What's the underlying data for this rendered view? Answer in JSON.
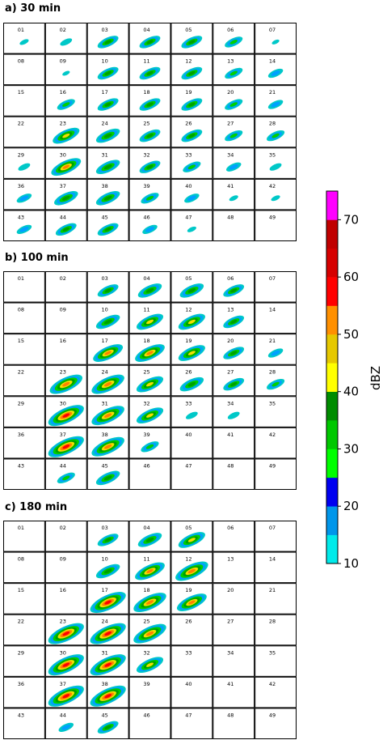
{
  "panels": [
    {
      "title": "a) 30 min",
      "cells": [
        "01",
        "02",
        "03",
        "04",
        "05",
        "06",
        "07",
        "08",
        "09",
        "10",
        "11",
        "12",
        "13",
        "14",
        "15",
        "16",
        "17",
        "18",
        "19",
        "20",
        "21",
        "22",
        "23",
        "24",
        "25",
        "26",
        "27",
        "28",
        "29",
        "30",
        "31",
        "32",
        "33",
        "34",
        "35",
        "36",
        "37",
        "38",
        "39",
        "40",
        "41",
        "42",
        "43",
        "44",
        "45",
        "46",
        "47",
        "48",
        "49"
      ],
      "storm_intensity": [
        0.1,
        0.2,
        0.5,
        0.5,
        0.5,
        0.4,
        0.05,
        0,
        0.05,
        0.5,
        0.5,
        0.5,
        0.4,
        0.3,
        0,
        0.4,
        0.5,
        0.5,
        0.5,
        0.4,
        0.3,
        0,
        0.7,
        0.6,
        0.5,
        0.5,
        0.4,
        0.4,
        0.2,
        0.8,
        0.6,
        0.5,
        0.4,
        0.3,
        0.2,
        0.3,
        0.6,
        0.6,
        0.4,
        0.3,
        0.1,
        0.1,
        0.3,
        0.5,
        0.5,
        0.3,
        0.1,
        0,
        0
      ]
    },
    {
      "title": "b) 100 min",
      "cells": [
        "01",
        "02",
        "03",
        "04",
        "05",
        "06",
        "07",
        "08",
        "09",
        "10",
        "11",
        "12",
        "13",
        "14",
        "15",
        "16",
        "17",
        "18",
        "19",
        "20",
        "21",
        "22",
        "23",
        "24",
        "25",
        "26",
        "27",
        "28",
        "29",
        "30",
        "31",
        "32",
        "33",
        "34",
        "35",
        "36",
        "37",
        "38",
        "39",
        "40",
        "41",
        "42",
        "43",
        "44",
        "45",
        "46",
        "47",
        "48",
        "49"
      ],
      "storm_intensity": [
        0,
        0,
        0.5,
        0.6,
        0.6,
        0.5,
        0,
        0,
        0,
        0.6,
        0.7,
        0.7,
        0.5,
        0,
        0,
        0,
        0.8,
        0.8,
        0.7,
        0.5,
        0.3,
        0,
        0.9,
        0.9,
        0.7,
        0.6,
        0.5,
        0.4,
        0,
        1,
        0.9,
        0.7,
        0.2,
        0.2,
        0,
        0,
        1,
        0.9,
        0.4,
        0,
        0,
        0,
        0,
        0.4,
        0.6,
        0,
        0,
        0,
        0
      ]
    },
    {
      "title": "c) 180 min",
      "cells": [
        "01",
        "02",
        "03",
        "04",
        "05",
        "06",
        "07",
        "08",
        "09",
        "10",
        "11",
        "12",
        "13",
        "14",
        "15",
        "16",
        "17",
        "18",
        "19",
        "20",
        "21",
        "22",
        "23",
        "24",
        "25",
        "26",
        "27",
        "28",
        "29",
        "30",
        "31",
        "32",
        "33",
        "34",
        "35",
        "36",
        "37",
        "38",
        "39",
        "40",
        "41",
        "42",
        "43",
        "44",
        "45",
        "46",
        "47",
        "48",
        "49"
      ],
      "storm_intensity": [
        0,
        0,
        0.5,
        0.6,
        0.7,
        0,
        0,
        0,
        0,
        0.6,
        0.8,
        0.9,
        0,
        0,
        0,
        0,
        1,
        0.9,
        0.8,
        0,
        0,
        0,
        1,
        1,
        0.9,
        0,
        0,
        0,
        0,
        1,
        1,
        0.7,
        0,
        0,
        0,
        0,
        1,
        1,
        0,
        0,
        0,
        0,
        0,
        0.3,
        0.5,
        0,
        0,
        0,
        0
      ]
    }
  ],
  "chart_data": {
    "type": "heatmap",
    "colorbar": {
      "label": "dBZ",
      "ticks": [
        10,
        20,
        30,
        40,
        50,
        60,
        70
      ],
      "range": [
        10,
        75
      ],
      "colors": [
        "#00eaea",
        "#0096ea",
        "#0000f0",
        "#00ff00",
        "#00c800",
        "#008c00",
        "#ffff00",
        "#e6c800",
        "#ff9000",
        "#ff0000",
        "#d60000",
        "#c00000",
        "#ff00ff"
      ]
    }
  }
}
